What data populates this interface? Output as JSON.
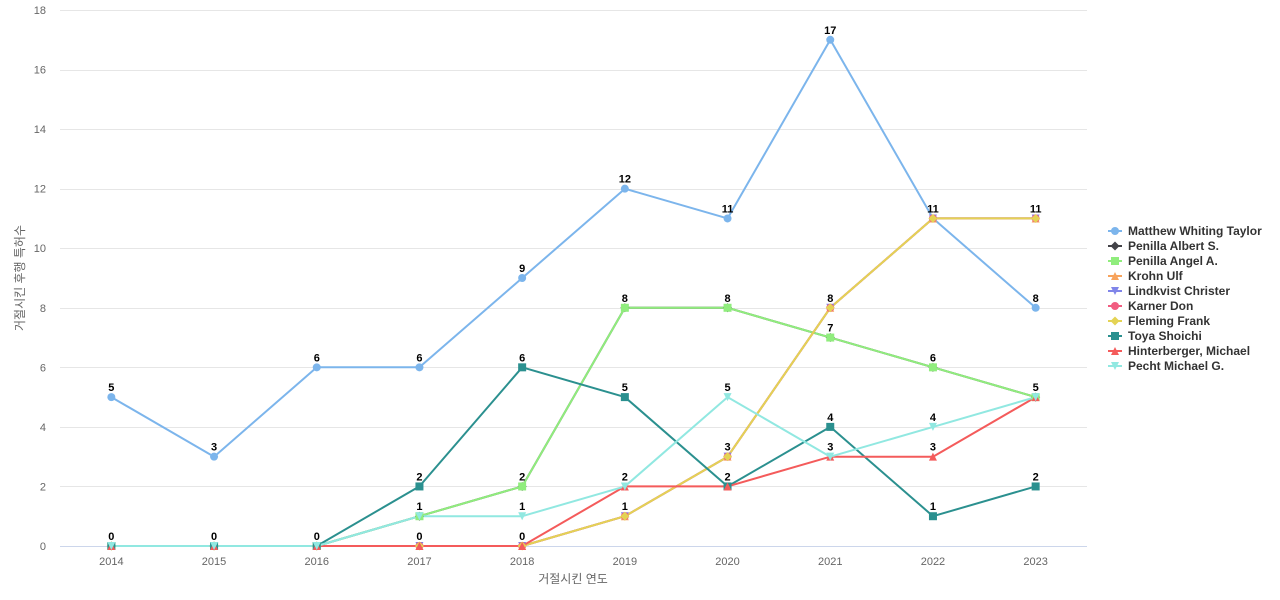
{
  "chart_data": {
    "type": "line",
    "xlabel": "거절시킨 연도",
    "ylabel": "거절시킨 후행 특허수",
    "ylim": [
      0,
      18
    ],
    "yticks": [
      0,
      2,
      4,
      6,
      8,
      10,
      12,
      14,
      16,
      18
    ],
    "grid": true,
    "legend_position": "right",
    "categories": [
      "2014",
      "2015",
      "2016",
      "2017",
      "2018",
      "2019",
      "2020",
      "2021",
      "2022",
      "2023"
    ],
    "series": [
      {
        "name": "Matthew Whiting Taylor",
        "color": "#7cb5ec",
        "marker": "circle",
        "values": [
          5,
          3,
          6,
          6,
          9,
          12,
          11,
          17,
          11,
          8
        ]
      },
      {
        "name": "Penilla Albert S.",
        "color": "#434348",
        "marker": "diamond",
        "values": [
          0,
          0,
          0,
          1,
          2,
          8,
          8,
          7,
          6,
          5
        ]
      },
      {
        "name": "Penilla Angel A.",
        "color": "#90ed7d",
        "marker": "square",
        "values": [
          0,
          0,
          0,
          1,
          2,
          8,
          8,
          7,
          6,
          5
        ]
      },
      {
        "name": "Krohn Ulf",
        "color": "#f7a35c",
        "marker": "triangle",
        "values": [
          0,
          0,
          0,
          0,
          0,
          1,
          3,
          8,
          11,
          11
        ]
      },
      {
        "name": "Lindkvist Christer",
        "color": "#8085e9",
        "marker": "triangle-down",
        "values": [
          0,
          0,
          0,
          0,
          0,
          1,
          3,
          8,
          11,
          11
        ]
      },
      {
        "name": "Karner Don",
        "color": "#f15c80",
        "marker": "circle",
        "values": [
          0,
          0,
          0,
          0,
          0,
          1,
          3,
          8,
          11,
          11
        ]
      },
      {
        "name": "Fleming Frank",
        "color": "#e4d354",
        "marker": "diamond",
        "values": [
          0,
          0,
          0,
          0,
          0,
          1,
          3,
          8,
          11,
          11
        ]
      },
      {
        "name": "Toya Shoichi",
        "color": "#2b908f",
        "marker": "square",
        "values": [
          0,
          0,
          0,
          2,
          6,
          5,
          2,
          4,
          1,
          2
        ]
      },
      {
        "name": "Hinterberger, Michael",
        "color": "#f45b5b",
        "marker": "triangle",
        "values": [
          0,
          0,
          0,
          0,
          0,
          2,
          2,
          3,
          3,
          5
        ]
      },
      {
        "name": "Pecht Michael G.",
        "color": "#91e8e1",
        "marker": "triangle-down",
        "values": [
          0,
          0,
          0,
          1,
          1,
          2,
          5,
          3,
          4,
          5
        ]
      }
    ],
    "data_labels": [
      {
        "category": "2014",
        "y": 5,
        "text": "5"
      },
      {
        "category": "2015",
        "y": 3,
        "text": "3"
      },
      {
        "category": "2016",
        "y": 6,
        "text": "6"
      },
      {
        "category": "2017",
        "y": 6,
        "text": "6"
      },
      {
        "category": "2018",
        "y": 9,
        "text": "9"
      },
      {
        "category": "2019",
        "y": 12,
        "text": "12"
      },
      {
        "category": "2020",
        "y": 11,
        "text": "11"
      },
      {
        "category": "2021",
        "y": 17,
        "text": "17"
      },
      {
        "category": "2022",
        "y": 11,
        "text": "11"
      },
      {
        "category": "2023",
        "y": 11,
        "text": "11"
      },
      {
        "category": "2023",
        "y": 8,
        "text": "8"
      },
      {
        "category": "2019",
        "y": 8,
        "text": "8"
      },
      {
        "category": "2020",
        "y": 8,
        "text": "8"
      },
      {
        "category": "2021",
        "y": 8,
        "text": "8"
      },
      {
        "category": "2021",
        "y": 7,
        "text": "7"
      },
      {
        "category": "2022",
        "y": 6,
        "text": "6"
      },
      {
        "category": "2023",
        "y": 5,
        "text": "5"
      },
      {
        "category": "2018",
        "y": 6,
        "text": "6"
      },
      {
        "category": "2019",
        "y": 5,
        "text": "5"
      },
      {
        "category": "2020",
        "y": 5,
        "text": "5"
      },
      {
        "category": "2021",
        "y": 4,
        "text": "4"
      },
      {
        "category": "2022",
        "y": 4,
        "text": "4"
      },
      {
        "category": "2020",
        "y": 3,
        "text": "3"
      },
      {
        "category": "2021",
        "y": 3,
        "text": "3"
      },
      {
        "category": "2022",
        "y": 3,
        "text": "3"
      },
      {
        "category": "2017",
        "y": 2,
        "text": "2"
      },
      {
        "category": "2018",
        "y": 2,
        "text": "2"
      },
      {
        "category": "2019",
        "y": 2,
        "text": "2"
      },
      {
        "category": "2020",
        "y": 2,
        "text": "2"
      },
      {
        "category": "2023",
        "y": 2,
        "text": "2"
      },
      {
        "category": "2017",
        "y": 1,
        "text": "1"
      },
      {
        "category": "2018",
        "y": 1,
        "text": "1"
      },
      {
        "category": "2019",
        "y": 1,
        "text": "1"
      },
      {
        "category": "2022",
        "y": 1,
        "text": "1"
      },
      {
        "category": "2014",
        "y": 0,
        "text": "0"
      },
      {
        "category": "2015",
        "y": 0,
        "text": "0"
      },
      {
        "category": "2016",
        "y": 0,
        "text": "0"
      },
      {
        "category": "2017",
        "y": 0,
        "text": "0"
      },
      {
        "category": "2018",
        "y": 0,
        "text": "0"
      }
    ]
  }
}
